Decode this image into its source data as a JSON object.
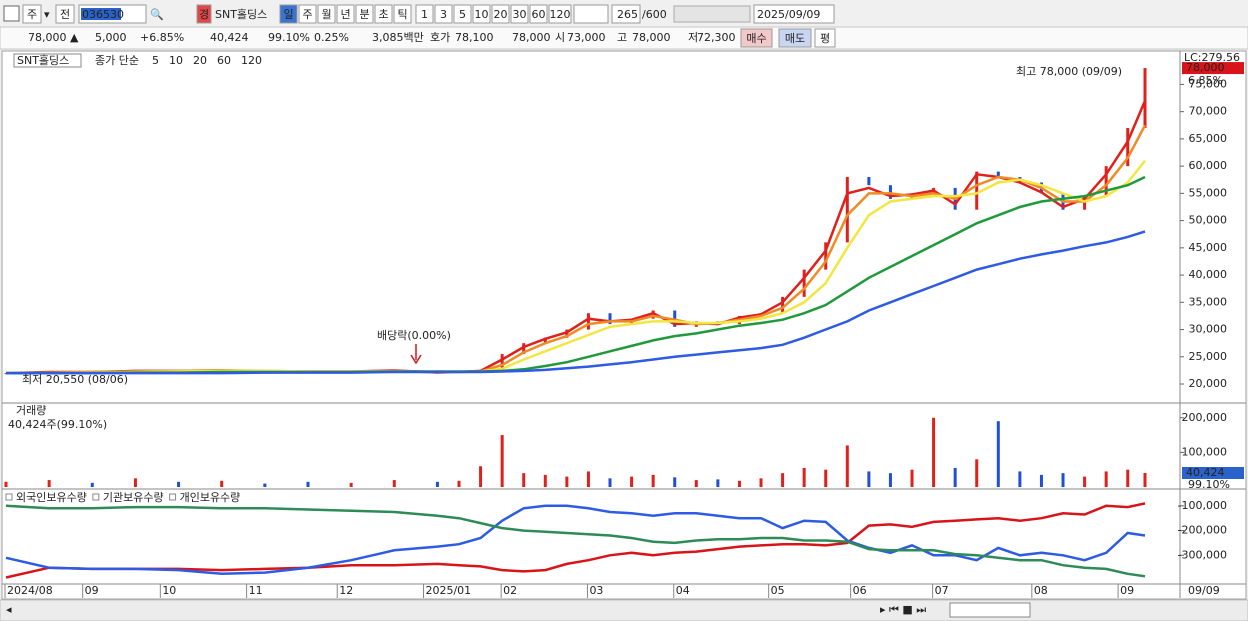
{
  "toolbar": {
    "market": "주",
    "prev": "전",
    "code": "036530",
    "badge": "경",
    "name": "SNT홀딩스",
    "periods": [
      "일",
      "주",
      "월",
      "년",
      "분",
      "초",
      "틱"
    ],
    "minutes": [
      "1",
      "3",
      "5",
      "10",
      "20",
      "30",
      "60",
      "120"
    ],
    "count": "265",
    "max": "/600",
    "date": "2025/09/09"
  },
  "quote": {
    "price": "78,000 ▲",
    "change": "5,000",
    "change_pct": "+6.85%",
    "volume": "40,424",
    "vol_ratio": "99.10%",
    "turnover": "0.25%",
    "amount": "3,085백만",
    "ask_label": "호가",
    "ask": "78,100",
    "bid": "78,000",
    "open_label": "시",
    "open": "73,000",
    "high_label": "고",
    "high": "78,000",
    "low_label": "저",
    "low": "72,300",
    "buy": "매수",
    "sell": "매도",
    "avg": "평"
  },
  "chart_data": [
    {
      "type": "line",
      "title": "SNT홀딩스",
      "legend_title": "종가 단순",
      "lc_label": "LC:279.56",
      "last_label": "78,000",
      "last_pct": "6.85%",
      "high_note": "최고 78,000 (09/09)",
      "low_note": "최저 20,550 (08/06)",
      "event_note": "배당락(0.00%)",
      "x": [
        0,
        10,
        20,
        30,
        40,
        50,
        60,
        70,
        80,
        90,
        100,
        105,
        110,
        115,
        120,
        125,
        130,
        135,
        140,
        145,
        150,
        155,
        160,
        165,
        170,
        175,
        180,
        185,
        190,
        195,
        200,
        205,
        210,
        215,
        220,
        225,
        230,
        235,
        240,
        245,
        250,
        255,
        260,
        264
      ],
      "xlim": [
        0,
        264
      ],
      "xticks": [
        {
          "value": 0,
          "label": "2024/08"
        },
        {
          "value": 18,
          "label": "09"
        },
        {
          "value": 36,
          "label": "10"
        },
        {
          "value": 56,
          "label": "11"
        },
        {
          "value": 77,
          "label": "12"
        },
        {
          "value": 97,
          "label": "2025/01"
        },
        {
          "value": 115,
          "label": "02"
        },
        {
          "value": 135,
          "label": "03"
        },
        {
          "value": 155,
          "label": "04"
        },
        {
          "value": 177,
          "label": "05"
        },
        {
          "value": 196,
          "label": "06"
        },
        {
          "value": 215,
          "label": "07"
        },
        {
          "value": 238,
          "label": "08"
        },
        {
          "value": 258,
          "label": "09"
        }
      ],
      "x_end_label": "09/09",
      "ylim": [
        16700,
        80400
      ],
      "yticks": [
        {
          "value": 20000,
          "label": "20,000"
        },
        {
          "value": 25000,
          "label": "25,000"
        },
        {
          "value": 30000,
          "label": "30,000"
        },
        {
          "value": 35000,
          "label": "35,000"
        },
        {
          "value": 40000,
          "label": "40,000"
        },
        {
          "value": 45000,
          "label": "45,000"
        },
        {
          "value": 50000,
          "label": "50,000"
        },
        {
          "value": 55000,
          "label": "55,000"
        },
        {
          "value": 60000,
          "label": "60,000"
        },
        {
          "value": 65000,
          "label": "65,000"
        },
        {
          "value": 70000,
          "label": "70,000"
        },
        {
          "value": 75000,
          "label": "75,000"
        }
      ],
      "close": [
        22000,
        22300,
        22200,
        22500,
        22400,
        22600,
        22300,
        22200,
        22400,
        22500,
        22000,
        22300,
        22500,
        25500,
        27500,
        28500,
        30000,
        33000,
        31000,
        32000,
        33500,
        30500,
        31500,
        31000,
        32500,
        33000,
        36000,
        41000,
        46000,
        58000,
        56500,
        54000,
        55000,
        56000,
        52000,
        59000,
        58000,
        57000,
        55000,
        52000,
        54500,
        60000,
        67000,
        78000
      ],
      "up_color": "#e0201b",
      "down_color": "#1f4fd8",
      "series": [
        {
          "name": "5",
          "color": "#e0201b",
          "values": [
            22000,
            22200,
            22200,
            22400,
            22400,
            22500,
            22300,
            22300,
            22300,
            22500,
            22100,
            22200,
            22400,
            24500,
            26800,
            28300,
            29500,
            32000,
            31500,
            31800,
            33000,
            31000,
            31200,
            31000,
            32200,
            32800,
            35000,
            39500,
            44500,
            55000,
            56000,
            54500,
            54800,
            55500,
            53000,
            58500,
            58000,
            57000,
            55200,
            52500,
            54000,
            58500,
            64500,
            72000
          ]
        },
        {
          "name": "10",
          "color": "#f08a24",
          "values": [
            22000,
            22100,
            22200,
            22300,
            22400,
            22500,
            22400,
            22300,
            22300,
            22400,
            22200,
            22200,
            22300,
            23500,
            25800,
            27500,
            28800,
            31000,
            31500,
            31500,
            32500,
            31800,
            31000,
            31200,
            31800,
            32500,
            34000,
            37500,
            42500,
            51000,
            55000,
            55000,
            54500,
            55000,
            54000,
            56500,
            58000,
            57500,
            56000,
            53500,
            53500,
            56500,
            61500,
            67500
          ]
        },
        {
          "name": "20",
          "color": "#f2e640",
          "values": [
            22000,
            22000,
            22100,
            22200,
            22300,
            22400,
            22400,
            22300,
            22300,
            22300,
            22200,
            22200,
            22300,
            22800,
            24500,
            26000,
            27500,
            29000,
            30500,
            31000,
            31500,
            31500,
            31200,
            31200,
            31500,
            32000,
            33000,
            35000,
            38500,
            45000,
            51000,
            53500,
            54000,
            54500,
            54500,
            55000,
            57000,
            57500,
            56500,
            55000,
            53500,
            54500,
            57000,
            61000
          ]
        },
        {
          "name": "60",
          "color": "#1f9a3a",
          "values": [
            22000,
            22000,
            22000,
            22100,
            22100,
            22200,
            22200,
            22200,
            22200,
            22300,
            22300,
            22300,
            22300,
            22400,
            22700,
            23300,
            24000,
            25000,
            26000,
            27000,
            28000,
            28800,
            29300,
            30000,
            30700,
            31200,
            31800,
            33000,
            34500,
            37000,
            39500,
            41500,
            43500,
            45500,
            47500,
            49500,
            51000,
            52500,
            53500,
            54000,
            54500,
            55500,
            56500,
            58000
          ]
        },
        {
          "name": "120",
          "color": "#2d5be3",
          "values": [
            22000,
            22000,
            22000,
            22000,
            22000,
            22000,
            22100,
            22100,
            22100,
            22200,
            22200,
            22200,
            22200,
            22300,
            22400,
            22600,
            22900,
            23200,
            23600,
            24000,
            24500,
            25000,
            25400,
            25800,
            26200,
            26600,
            27200,
            28500,
            30000,
            31500,
            33500,
            35000,
            36500,
            38000,
            39500,
            41000,
            42000,
            43000,
            43800,
            44500,
            45300,
            46000,
            47000,
            48000
          ]
        }
      ]
    },
    {
      "type": "bar",
      "title": "거래량",
      "subtitle": "40,424주(99.10%)",
      "last_label": "40,424",
      "last_pct": "99.10%",
      "values": [
        15000,
        20000,
        12000,
        25000,
        15000,
        18000,
        10000,
        15000,
        12000,
        20000,
        15000,
        18000,
        60000,
        150000,
        40000,
        35000,
        30000,
        45000,
        25000,
        30000,
        35000,
        28000,
        20000,
        22000,
        18000,
        25000,
        40000,
        55000,
        50000,
        120000,
        45000,
        40000,
        50000,
        200000,
        55000,
        80000,
        190000,
        45000,
        35000,
        40000,
        30000,
        45000,
        50000,
        40424
      ],
      "ylim": [
        0,
        234000
      ],
      "yticks": [
        {
          "value": 100000,
          "label": "100,000"
        },
        {
          "value": 200000,
          "label": "200,000"
        }
      ]
    },
    {
      "type": "line",
      "ylim": [
        -408000,
        -40000
      ],
      "yticks": [
        {
          "value": -100000,
          "label": "-100,000"
        },
        {
          "value": -200000,
          "label": "-200,000"
        },
        {
          "value": -300000,
          "label": "-300,000"
        }
      ],
      "series": [
        {
          "name": "외국인보유수량",
          "color": "#d8141a",
          "values": [
            -390000,
            -350000,
            -355000,
            -355000,
            -355000,
            -360000,
            -355000,
            -350000,
            -340000,
            -340000,
            -335000,
            -340000,
            -345000,
            -360000,
            -365000,
            -360000,
            -335000,
            -320000,
            -300000,
            -290000,
            -300000,
            -290000,
            -285000,
            -275000,
            -265000,
            -260000,
            -255000,
            -255000,
            -260000,
            -250000,
            -180000,
            -175000,
            -185000,
            -165000,
            -160000,
            -155000,
            -150000,
            -160000,
            -150000,
            -130000,
            -135000,
            -100000,
            -105000,
            -90000
          ]
        },
        {
          "name": "기관보유수량",
          "color": "#2d5be3",
          "values": [
            -310000,
            -350000,
            -355000,
            -355000,
            -360000,
            -375000,
            -370000,
            -350000,
            -320000,
            -280000,
            -265000,
            -255000,
            -230000,
            -160000,
            -110000,
            -100000,
            -100000,
            -110000,
            -125000,
            -130000,
            -140000,
            -130000,
            -130000,
            -140000,
            -150000,
            -150000,
            -190000,
            -160000,
            -165000,
            -240000,
            -270000,
            -290000,
            -260000,
            -300000,
            -300000,
            -320000,
            -270000,
            -300000,
            -290000,
            -300000,
            -320000,
            -290000,
            -210000,
            -220000
          ]
        },
        {
          "name": "개인보유수량",
          "color": "#2e8b57",
          "values": [
            -100000,
            -110000,
            -110000,
            -105000,
            -105000,
            -110000,
            -110000,
            -115000,
            -120000,
            -125000,
            -140000,
            -150000,
            -170000,
            -190000,
            -200000,
            -205000,
            -210000,
            -215000,
            -220000,
            -230000,
            -245000,
            -250000,
            -240000,
            -235000,
            -235000,
            -230000,
            -230000,
            -240000,
            -240000,
            -245000,
            -275000,
            -280000,
            -280000,
            -280000,
            -295000,
            -300000,
            -310000,
            -320000,
            -320000,
            -340000,
            -350000,
            -355000,
            -375000,
            -385000
          ]
        }
      ]
    }
  ]
}
